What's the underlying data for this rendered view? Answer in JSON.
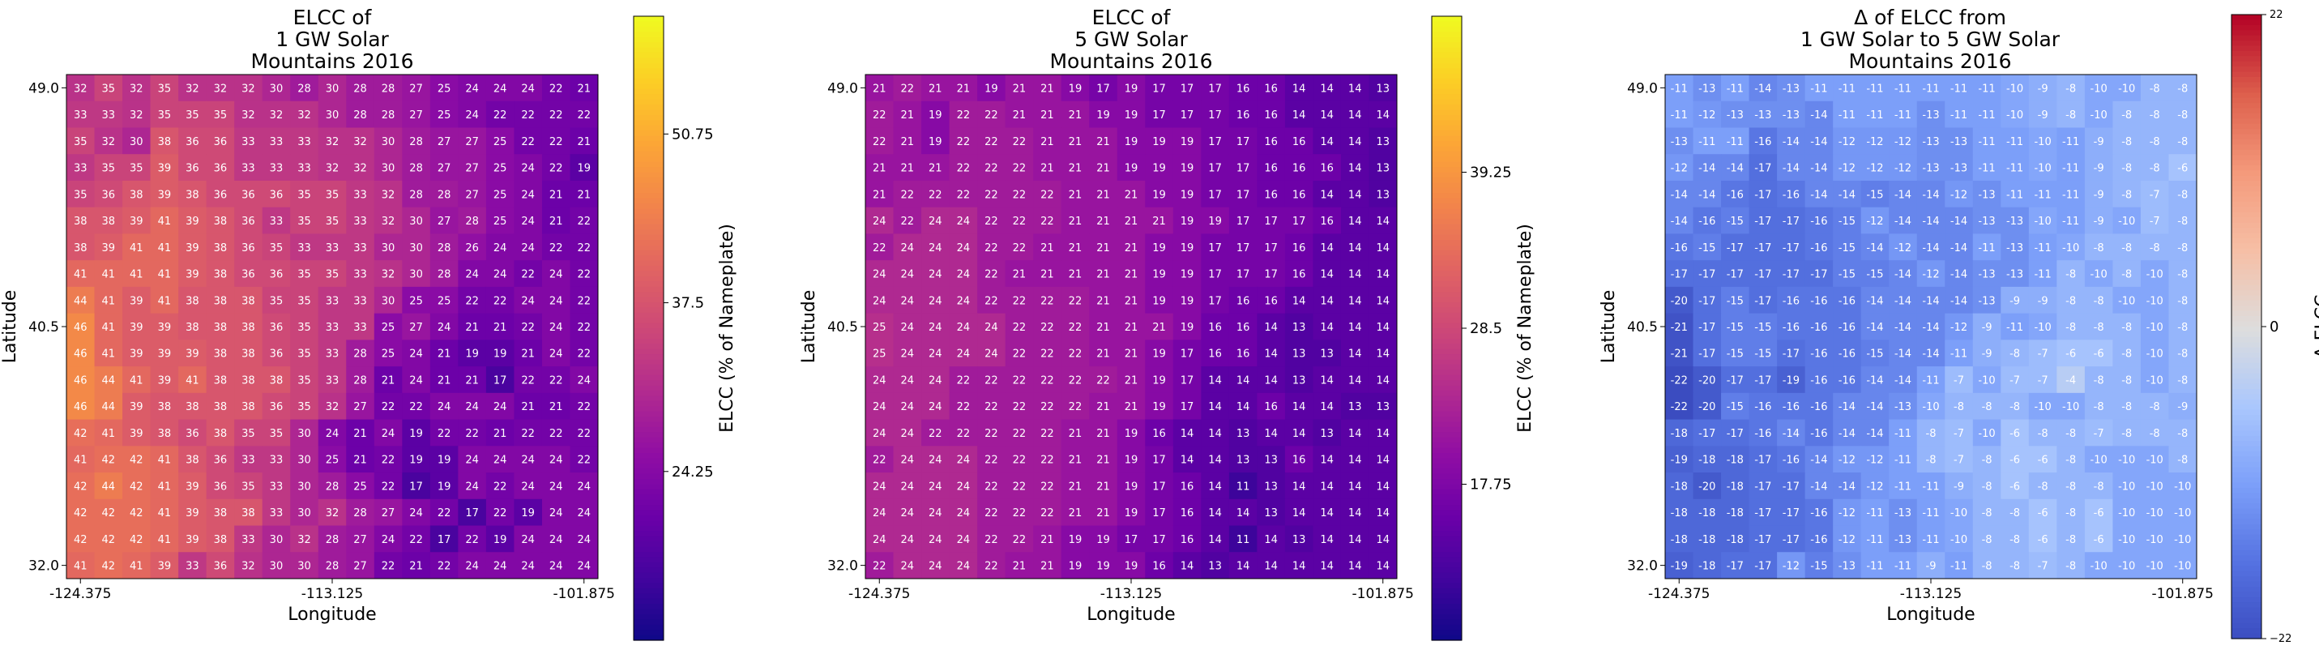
{
  "chart_data": [
    {
      "type": "heatmap",
      "title": [
        "ELCC of",
        "1 GW Solar",
        "Mountains 2016"
      ],
      "xlabel": "Longitude",
      "ylabel": "Latitude",
      "xticks": [
        "-124.375",
        "-113.125",
        "-101.875"
      ],
      "yticks": [
        "49.0",
        "40.5",
        "32.0"
      ],
      "colormap": "plasma",
      "vmin": 11,
      "vmax": 60,
      "colorbar_label": "ELCC (% of Nameplate)",
      "colorbar_ticks": [
        {
          "value": 24.25,
          "label": "24.25"
        },
        {
          "value": 37.5,
          "label": "37.5"
        },
        {
          "value": 50.75,
          "label": "50.75"
        }
      ],
      "rows": [
        [
          32,
          35,
          32,
          35,
          32,
          32,
          32,
          30,
          28,
          30,
          28,
          28,
          27,
          25,
          24,
          24,
          24,
          22,
          21
        ],
        [
          33,
          33,
          32,
          35,
          35,
          35,
          32,
          32,
          32,
          30,
          28,
          28,
          27,
          25,
          24,
          22,
          22,
          22,
          22
        ],
        [
          35,
          32,
          30,
          38,
          36,
          36,
          33,
          33,
          33,
          32,
          32,
          30,
          28,
          27,
          27,
          25,
          22,
          22,
          21
        ],
        [
          33,
          35,
          35,
          39,
          36,
          36,
          33,
          33,
          33,
          32,
          32,
          30,
          28,
          27,
          27,
          25,
          24,
          22,
          19
        ],
        [
          35,
          36,
          38,
          39,
          38,
          36,
          36,
          36,
          35,
          35,
          33,
          32,
          28,
          28,
          27,
          25,
          24,
          21,
          21
        ],
        [
          38,
          38,
          39,
          41,
          39,
          38,
          36,
          33,
          35,
          35,
          33,
          32,
          30,
          27,
          28,
          25,
          24,
          21,
          22
        ],
        [
          38,
          39,
          41,
          41,
          39,
          38,
          36,
          35,
          33,
          33,
          33,
          30,
          30,
          28,
          26,
          24,
          24,
          22,
          22
        ],
        [
          41,
          41,
          41,
          41,
          39,
          38,
          36,
          36,
          35,
          35,
          33,
          32,
          30,
          28,
          24,
          24,
          22,
          24,
          22
        ],
        [
          44,
          41,
          39,
          41,
          38,
          38,
          38,
          35,
          35,
          33,
          33,
          30,
          25,
          25,
          22,
          22,
          24,
          24,
          22
        ],
        [
          46,
          41,
          39,
          39,
          38,
          38,
          38,
          36,
          35,
          33,
          33,
          25,
          27,
          24,
          21,
          21,
          22,
          24,
          22
        ],
        [
          46,
          41,
          39,
          39,
          39,
          38,
          38,
          36,
          35,
          33,
          28,
          25,
          24,
          21,
          19,
          19,
          21,
          24,
          22
        ],
        [
          46,
          44,
          41,
          39,
          41,
          38,
          38,
          38,
          35,
          33,
          28,
          21,
          24,
          21,
          21,
          17,
          22,
          22,
          24
        ],
        [
          46,
          44,
          39,
          38,
          38,
          38,
          38,
          36,
          35,
          32,
          27,
          22,
          22,
          24,
          24,
          24,
          21,
          21,
          22
        ],
        [
          42,
          41,
          39,
          38,
          36,
          38,
          35,
          35,
          30,
          24,
          21,
          24,
          19,
          22,
          22,
          21,
          22,
          22,
          22
        ],
        [
          41,
          42,
          42,
          41,
          38,
          36,
          33,
          33,
          30,
          25,
          21,
          22,
          19,
          19,
          24,
          24,
          24,
          24,
          22
        ],
        [
          42,
          44,
          42,
          41,
          39,
          36,
          35,
          33,
          30,
          28,
          25,
          22,
          17,
          19,
          24,
          22,
          24,
          24,
          24
        ],
        [
          42,
          42,
          42,
          41,
          39,
          38,
          38,
          33,
          30,
          32,
          28,
          27,
          24,
          22,
          17,
          22,
          19,
          24,
          24
        ],
        [
          42,
          42,
          42,
          41,
          39,
          38,
          33,
          30,
          32,
          28,
          27,
          24,
          22,
          17,
          22,
          19,
          24,
          24,
          24
        ],
        [
          41,
          42,
          41,
          39,
          33,
          36,
          32,
          30,
          30,
          28,
          27,
          22,
          21,
          22,
          24,
          24,
          24,
          24,
          24
        ]
      ]
    },
    {
      "type": "heatmap",
      "title": [
        "ELCC of",
        "5 GW Solar",
        "Mountains 2016"
      ],
      "xlabel": "Longitude",
      "ylabel": "Latitude",
      "xticks": [
        "-124.375",
        "-113.125",
        "-101.875"
      ],
      "yticks": [
        "49.0",
        "40.5",
        "32.0"
      ],
      "colormap": "plasma",
      "vmin": 7,
      "vmax": 50,
      "colorbar_label": "ELCC (% of Nameplate)",
      "colorbar_ticks": [
        {
          "value": 17.75,
          "label": "17.75"
        },
        {
          "value": 28.5,
          "label": "28.5"
        },
        {
          "value": 39.25,
          "label": "39.25"
        }
      ],
      "rows": [
        [
          21,
          22,
          21,
          21,
          19,
          21,
          21,
          19,
          17,
          19,
          17,
          17,
          17,
          16,
          16,
          14,
          14,
          14,
          13
        ],
        [
          22,
          21,
          19,
          22,
          22,
          21,
          21,
          21,
          19,
          19,
          17,
          17,
          17,
          16,
          16,
          14,
          14,
          14,
          14
        ],
        [
          22,
          21,
          19,
          22,
          22,
          22,
          21,
          21,
          21,
          19,
          19,
          19,
          17,
          17,
          16,
          16,
          14,
          14,
          13
        ],
        [
          21,
          21,
          21,
          22,
          22,
          22,
          21,
          21,
          21,
          19,
          19,
          19,
          17,
          17,
          16,
          16,
          16,
          14,
          13
        ],
        [
          21,
          22,
          22,
          22,
          22,
          22,
          22,
          21,
          21,
          21,
          19,
          19,
          17,
          17,
          16,
          16,
          14,
          14,
          13
        ],
        [
          24,
          22,
          24,
          24,
          22,
          22,
          22,
          21,
          21,
          21,
          21,
          19,
          19,
          17,
          17,
          17,
          16,
          14,
          14
        ],
        [
          22,
          24,
          24,
          24,
          22,
          22,
          21,
          21,
          21,
          21,
          19,
          19,
          17,
          17,
          17,
          16,
          14,
          14,
          14
        ],
        [
          24,
          24,
          24,
          24,
          22,
          21,
          21,
          21,
          21,
          21,
          19,
          19,
          17,
          17,
          17,
          16,
          14,
          14,
          14
        ],
        [
          24,
          24,
          24,
          24,
          22,
          22,
          22,
          22,
          21,
          21,
          19,
          19,
          17,
          16,
          16,
          14,
          14,
          14,
          14
        ],
        [
          25,
          24,
          24,
          24,
          24,
          22,
          22,
          22,
          21,
          21,
          21,
          19,
          16,
          16,
          14,
          13,
          14,
          14,
          14
        ],
        [
          25,
          24,
          24,
          24,
          24,
          22,
          22,
          22,
          21,
          21,
          19,
          17,
          16,
          16,
          14,
          13,
          13,
          14,
          14
        ],
        [
          24,
          24,
          24,
          22,
          22,
          22,
          22,
          22,
          22,
          21,
          19,
          17,
          14,
          14,
          14,
          13,
          14,
          14,
          14
        ],
        [
          24,
          24,
          24,
          22,
          22,
          22,
          22,
          22,
          21,
          21,
          19,
          17,
          14,
          14,
          16,
          14,
          14,
          13,
          13
        ],
        [
          24,
          24,
          22,
          22,
          22,
          22,
          22,
          21,
          21,
          19,
          16,
          14,
          14,
          13,
          14,
          14,
          13,
          14,
          14
        ],
        [
          22,
          24,
          24,
          24,
          22,
          22,
          22,
          21,
          21,
          19,
          17,
          14,
          14,
          13,
          13,
          16,
          14,
          14,
          14
        ],
        [
          24,
          24,
          24,
          24,
          22,
          22,
          22,
          21,
          21,
          19,
          17,
          16,
          14,
          11,
          13,
          14,
          14,
          14,
          14
        ],
        [
          24,
          24,
          24,
          24,
          22,
          22,
          22,
          21,
          21,
          19,
          17,
          16,
          14,
          14,
          13,
          14,
          14,
          14,
          14
        ],
        [
          24,
          24,
          24,
          24,
          22,
          22,
          21,
          19,
          19,
          17,
          17,
          16,
          14,
          11,
          14,
          13,
          14,
          14,
          14
        ],
        [
          22,
          24,
          24,
          24,
          22,
          21,
          21,
          19,
          19,
          19,
          16,
          14,
          13,
          14,
          14,
          14,
          14,
          14,
          14
        ]
      ]
    },
    {
      "type": "heatmap",
      "title": [
        "Δ of ELCC from",
        "1 GW Solar to 5 GW Solar",
        "Mountains 2016"
      ],
      "xlabel": "Longitude",
      "ylabel": "Latitude",
      "xticks": [
        "-124.375",
        "-113.125",
        "-101.875"
      ],
      "yticks": [
        "49.0",
        "40.5",
        "32.0"
      ],
      "colormap": "coolwarm",
      "vmin": -22,
      "vmax": 22,
      "colorbar_label": "Δ ELCC",
      "colorbar_ticks": [
        {
          "value": -22,
          "label": "−22"
        },
        {
          "value": 0,
          "label": "0"
        },
        {
          "value": 22,
          "label": "22"
        }
      ],
      "rows": [
        [
          -11,
          -13,
          -11,
          -14,
          -13,
          -11,
          -11,
          -11,
          -11,
          -11,
          -11,
          -11,
          -10,
          -9,
          -8,
          -10,
          -10,
          -8,
          -8
        ],
        [
          -11,
          -12,
          -13,
          -13,
          -13,
          -14,
          -11,
          -11,
          -11,
          -13,
          -11,
          -11,
          -10,
          -9,
          -8,
          -10,
          -8,
          -8,
          -8
        ],
        [
          -13,
          -11,
          -11,
          -16,
          -14,
          -14,
          -12,
          -12,
          -12,
          -13,
          -13,
          -11,
          -11,
          -10,
          -11,
          -9,
          -8,
          -8,
          -8
        ],
        [
          -12,
          -14,
          -14,
          -17,
          -14,
          -14,
          -12,
          -12,
          -12,
          -13,
          -13,
          -11,
          -11,
          -10,
          -11,
          -9,
          -8,
          -8,
          -6
        ],
        [
          -14,
          -14,
          -16,
          -17,
          -16,
          -14,
          -14,
          -15,
          -14,
          -14,
          -12,
          -13,
          -11,
          -11,
          -11,
          -9,
          -8,
          -7,
          -8
        ],
        [
          -14,
          -16,
          -15,
          -17,
          -17,
          -16,
          -15,
          -12,
          -14,
          -14,
          -14,
          -13,
          -13,
          -10,
          -11,
          -9,
          -10,
          -7,
          -8
        ],
        [
          -16,
          -15,
          -17,
          -17,
          -17,
          -16,
          -15,
          -14,
          -12,
          -14,
          -14,
          -11,
          -13,
          -11,
          -10,
          -8,
          -8,
          -8,
          -8
        ],
        [
          -17,
          -17,
          -17,
          -17,
          -17,
          -17,
          -15,
          -15,
          -14,
          -12,
          -14,
          -13,
          -13,
          -11,
          -8,
          -10,
          -8,
          -10,
          -8
        ],
        [
          -20,
          -17,
          -15,
          -17,
          -16,
          -16,
          -16,
          -14,
          -14,
          -14,
          -14,
          -13,
          -9,
          -9,
          -8,
          -8,
          -10,
          -10,
          -8
        ],
        [
          -21,
          -17,
          -15,
          -15,
          -16,
          -16,
          -16,
          -14,
          -14,
          -14,
          -12,
          -9,
          -11,
          -10,
          -8,
          -8,
          -8,
          -10,
          -8
        ],
        [
          -21,
          -17,
          -15,
          -15,
          -17,
          -16,
          -16,
          -15,
          -14,
          -14,
          -11,
          -9,
          -8,
          -7,
          -6,
          -6,
          -8,
          -10,
          -8
        ],
        [
          -22,
          -20,
          -17,
          -17,
          -19,
          -16,
          -16,
          -14,
          -14,
          -11,
          -7,
          -10,
          -7,
          -7,
          -4,
          -8,
          -8,
          -10,
          -8
        ],
        [
          -22,
          -20,
          -15,
          -16,
          -16,
          -16,
          -14,
          -14,
          -13,
          -10,
          -8,
          -8,
          -8,
          -10,
          -10,
          -8,
          -8,
          -8,
          -9
        ],
        [
          -18,
          -17,
          -17,
          -16,
          -14,
          -16,
          -14,
          -14,
          -11,
          -8,
          -7,
          -10,
          -6,
          -8,
          -8,
          -7,
          -8,
          -8,
          -8
        ],
        [
          -19,
          -18,
          -18,
          -17,
          -16,
          -14,
          -12,
          -12,
          -11,
          -8,
          -7,
          -8,
          -6,
          -6,
          -8,
          -10,
          -10,
          -10,
          -8
        ],
        [
          -18,
          -20,
          -18,
          -17,
          -17,
          -14,
          -14,
          -12,
          -11,
          -11,
          -9,
          -8,
          -6,
          -8,
          -8,
          -8,
          -10,
          -10,
          -10
        ],
        [
          -18,
          -18,
          -18,
          -17,
          -17,
          -16,
          -12,
          -11,
          -13,
          -11,
          -10,
          -8,
          -8,
          -6,
          -8,
          -6,
          -10,
          -10,
          -10
        ],
        [
          -18,
          -18,
          -18,
          -17,
          -17,
          -16,
          -12,
          -11,
          -13,
          -11,
          -10,
          -8,
          -8,
          -6,
          -8,
          -6,
          -10,
          -10,
          -10
        ],
        [
          -19,
          -18,
          -17,
          -17,
          -12,
          -15,
          -13,
          -11,
          -11,
          -9,
          -11,
          -8,
          -8,
          -7,
          -8,
          -10,
          -10,
          -10,
          -10
        ]
      ]
    }
  ]
}
